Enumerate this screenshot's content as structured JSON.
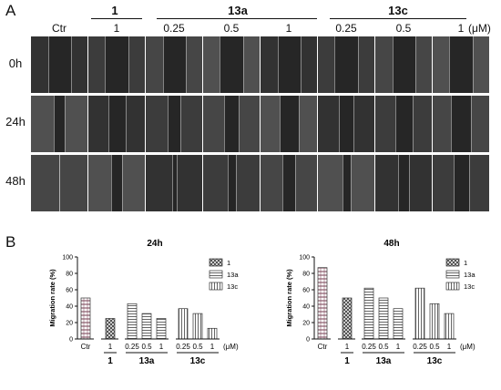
{
  "panelA": {
    "letter": "A",
    "unit": "(μM)",
    "columns": [
      "Ctr",
      "1",
      "0.25",
      "0.5",
      "1",
      "0.25",
      "0.5",
      "1"
    ],
    "groups": [
      {
        "label": "1",
        "span": [
          1,
          1
        ]
      },
      {
        "label": "13a",
        "span": [
          2,
          4
        ]
      },
      {
        "label": "13c",
        "span": [
          5,
          7
        ]
      }
    ],
    "rows": [
      "0h",
      "24h",
      "48h"
    ],
    "gap_fraction": [
      [
        0.4,
        0.42,
        0.4,
        0.42,
        0.4,
        0.42,
        0.4,
        0.42
      ],
      [
        0.2,
        0.3,
        0.22,
        0.26,
        0.34,
        0.26,
        0.3,
        0.36
      ],
      [
        0.0,
        0.2,
        0.08,
        0.14,
        0.22,
        0.14,
        0.2,
        0.28
      ]
    ]
  },
  "panelB": {
    "letter": "B",
    "unit": "(μM)",
    "xgroups": [
      {
        "label": "1"
      },
      {
        "label": "13a"
      },
      {
        "label": "13c"
      }
    ],
    "pattern_colors": {
      "ctr": "#8a5a6a",
      "c1": "#444444",
      "c13a": "#555555",
      "c13c": "#555555"
    }
  },
  "chart_data": [
    {
      "type": "bar",
      "title": "24h",
      "ylabel": "Migration rate (%)",
      "xlabel": "",
      "ylim": [
        0,
        100
      ],
      "yticks": [
        0,
        20,
        40,
        60,
        80,
        100
      ],
      "categories": [
        "Ctr",
        "1",
        "0.25",
        "0.5",
        "1",
        "0.25",
        "0.5",
        "1"
      ],
      "values": [
        50,
        25,
        43,
        31,
        25,
        37,
        31,
        13
      ],
      "series": [
        {
          "name": "1",
          "indices": [
            1
          ]
        },
        {
          "name": "13a",
          "indices": [
            2,
            3,
            4
          ]
        },
        {
          "name": "13c",
          "indices": [
            5,
            6,
            7
          ]
        }
      ],
      "legend": "top-right"
    },
    {
      "type": "bar",
      "title": "48h",
      "ylabel": "Migration rate (%)",
      "xlabel": "",
      "ylim": [
        0,
        100
      ],
      "yticks": [
        0,
        20,
        40,
        60,
        80,
        100
      ],
      "categories": [
        "Ctr",
        "1",
        "0.25",
        "0.5",
        "1",
        "0.25",
        "0.5",
        "1"
      ],
      "values": [
        87,
        50,
        62,
        50,
        37,
        62,
        43,
        31
      ],
      "series": [
        {
          "name": "1",
          "indices": [
            1
          ]
        },
        {
          "name": "13a",
          "indices": [
            2,
            3,
            4
          ]
        },
        {
          "name": "13c",
          "indices": [
            5,
            6,
            7
          ]
        }
      ],
      "legend": "top-right"
    }
  ]
}
